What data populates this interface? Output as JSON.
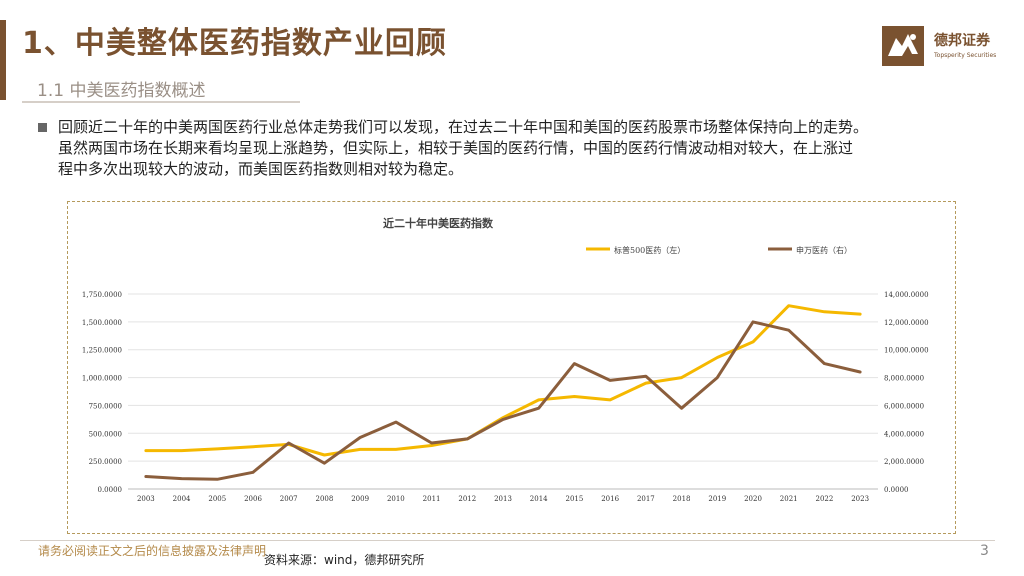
{
  "header": {
    "title": "1、中美整体医药指数产业回顾",
    "subtitle": "1.1 中美医药指数概述"
  },
  "logo": {
    "name_cn": "德邦证券",
    "name_en": "Topsperity Securities"
  },
  "body": {
    "lines": [
      "回顾近二十年的中美两国医药行业总体走势我们可以发现，在过去二十年中国和美国的医药股票市场整体保持向上的走势。",
      "虽然两国市场在长期来看均呈现上涨趋势，但实际上，相较于美国的医药行情，中国的医药行情波动相对较大，在上涨过",
      "程中多次出现较大的波动，而美国医药指数则相对较为稳定。"
    ]
  },
  "chart_data": {
    "type": "line",
    "title": "近二十年中美医药指数",
    "categories": [
      "2003",
      "2004",
      "2005",
      "2006",
      "2007",
      "2008",
      "2009",
      "2010",
      "2011",
      "2012",
      "2013",
      "2014",
      "2015",
      "2016",
      "2017",
      "2018",
      "2019",
      "2020",
      "2021",
      "2022",
      "2023"
    ],
    "series": [
      {
        "name": "标普500医药（左）",
        "axis": "left",
        "color": "#f5b800",
        "values": [
          345,
          345,
          360,
          380,
          400,
          305,
          355,
          355,
          390,
          450,
          640,
          800,
          830,
          800,
          950,
          1000,
          1180,
          1320,
          1645,
          1590,
          1570
        ]
      },
      {
        "name": "申万医药（右）",
        "axis": "right",
        "color": "#8b5e3c",
        "values": [
          900,
          750,
          700,
          1200,
          3300,
          1850,
          3700,
          4800,
          3300,
          3600,
          5000,
          5800,
          9000,
          7800,
          8100,
          5800,
          8000,
          12000,
          11400,
          9000,
          8400
        ]
      }
    ],
    "left_axis": {
      "min": 0,
      "max": 1750,
      "step": 250,
      "tick_labels": [
        "0.0000",
        "250.0000",
        "500.0000",
        "750.0000",
        "1,000.0000",
        "1,250.0000",
        "1,500.0000",
        "1,750.0000"
      ]
    },
    "right_axis": {
      "min": 0,
      "max": 14000,
      "step": 2000,
      "tick_labels": [
        "0.0000",
        "2,000.0000",
        "4,000.0000",
        "6,000.0000",
        "8,000.0000",
        "10,000.0000",
        "12,000.0000",
        "14,000.0000"
      ]
    },
    "grid": true,
    "legend_position": "top-right"
  },
  "footer": {
    "disclaimer": "请务必阅读正文之后的信息披露及法律声明",
    "source": "资料来源：wind，德邦研究所",
    "page": "3"
  }
}
